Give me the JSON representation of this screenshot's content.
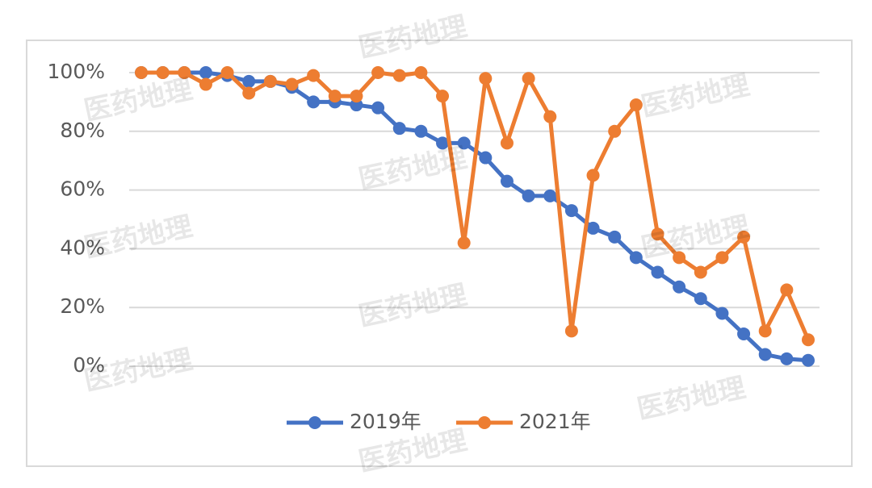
{
  "chart_data": {
    "type": "line",
    "watermark": "医药地理",
    "categories": [
      null,
      null,
      null,
      null,
      null,
      null,
      null,
      null,
      null,
      null,
      null,
      null,
      null,
      null,
      null,
      null,
      null,
      null,
      null,
      null,
      null,
      null,
      null,
      null,
      null,
      null,
      null,
      null,
      null,
      null,
      null,
      null
    ],
    "series": [
      {
        "name": "2019年",
        "color": "#4472c4",
        "values": [
          100,
          100,
          100,
          100,
          99,
          97,
          97,
          95,
          90,
          90,
          89,
          88,
          81,
          80,
          76,
          76,
          71,
          63,
          58,
          58,
          53,
          47,
          44,
          37,
          32,
          27,
          23,
          18,
          11,
          4,
          2.5,
          2
        ]
      },
      {
        "name": "2021年",
        "color": "#ed7d31",
        "values": [
          100,
          100,
          100,
          96,
          100,
          93,
          97,
          96,
          99,
          92,
          92,
          100,
          99,
          100,
          92,
          42,
          98,
          76,
          98,
          85,
          12,
          65,
          80,
          89,
          45,
          37,
          32,
          37,
          44,
          12,
          26,
          9
        ]
      }
    ],
    "ylim": [
      0,
      100
    ],
    "yticks": [
      {
        "value": 0,
        "label": "0%"
      },
      {
        "value": 20,
        "label": "20%"
      },
      {
        "value": 40,
        "label": "40%"
      },
      {
        "value": 60,
        "label": "60%"
      },
      {
        "value": 80,
        "label": "80%"
      },
      {
        "value": 100,
        "label": "100%"
      }
    ],
    "grid": true,
    "legend": "bottom"
  }
}
